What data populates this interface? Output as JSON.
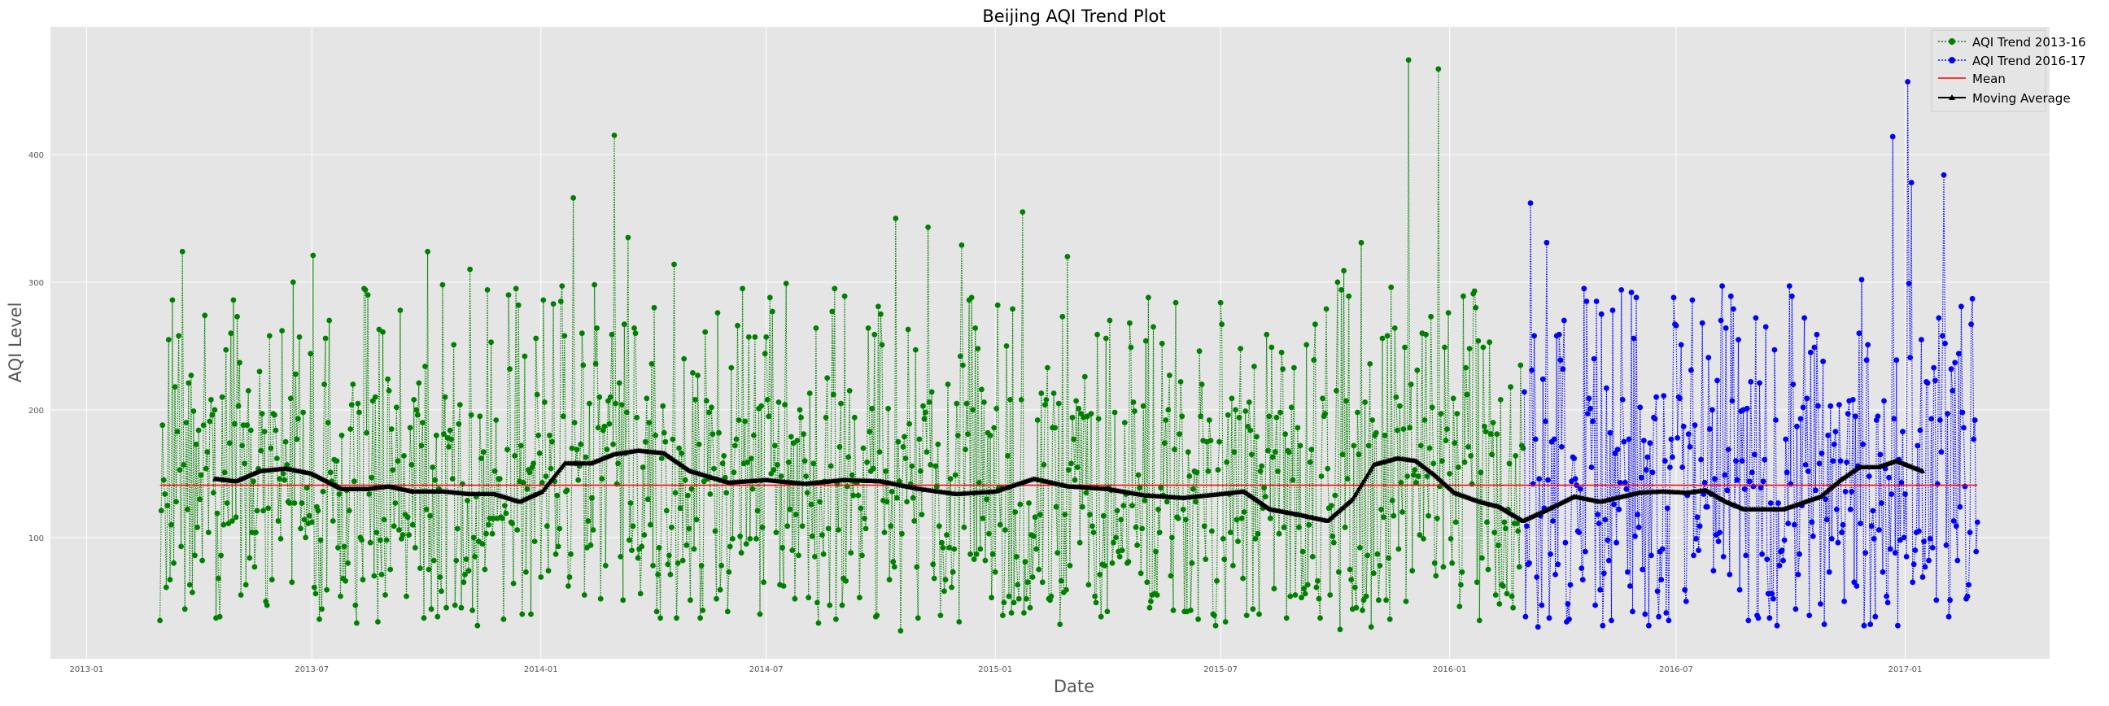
{
  "chart_data": {
    "type": "line",
    "title": "Beijing AQI Trend Plot",
    "xlabel": "Date",
    "ylabel": "AQI Level",
    "xlim": [
      "2012-12-03",
      "2017-04-27"
    ],
    "ylim": [
      5,
      500
    ],
    "x_ticks": [
      "2013-01",
      "2013-07",
      "2014-01",
      "2014-07",
      "2015-01",
      "2015-07",
      "2016-01",
      "2016-07",
      "2017-01"
    ],
    "y_ticks": [
      100,
      200,
      300,
      400
    ],
    "grid": true,
    "legend_position": "top-right",
    "mean_value": 141,
    "series": [
      {
        "name": "AQI Trend 2013-16",
        "color": "#008000",
        "marker": "circle",
        "linestyle": "dotted",
        "start": "2013-03-01",
        "end": "2016-02-29",
        "sampled_values": [
          {
            "date": "2013-03-01",
            "value": 35
          },
          {
            "date": "2013-03-04",
            "value": 145
          },
          {
            "date": "2013-03-08",
            "value": 255
          },
          {
            "date": "2013-03-11",
            "value": 286
          },
          {
            "date": "2013-03-16",
            "value": 258
          },
          {
            "date": "2013-03-19",
            "value": 324
          },
          {
            "date": "2013-05-02",
            "value": 273
          },
          {
            "date": "2013-07-02",
            "value": 321
          },
          {
            "date": "2013-10-02",
            "value": 324
          },
          {
            "date": "2013-11-05",
            "value": 310
          },
          {
            "date": "2013-12-12",
            "value": 295
          },
          {
            "date": "2014-01-27",
            "value": 366
          },
          {
            "date": "2014-03-01",
            "value": 415
          },
          {
            "date": "2014-03-12",
            "value": 335
          },
          {
            "date": "2014-04-18",
            "value": 314
          },
          {
            "date": "2014-10-13",
            "value": 350
          },
          {
            "date": "2014-11-08",
            "value": 343
          },
          {
            "date": "2014-12-05",
            "value": 329
          },
          {
            "date": "2015-01-23",
            "value": 355
          },
          {
            "date": "2015-02-28",
            "value": 320
          },
          {
            "date": "2015-07-17",
            "value": 248
          },
          {
            "date": "2015-10-08",
            "value": 309
          },
          {
            "date": "2015-10-22",
            "value": 331
          },
          {
            "date": "2015-11-29",
            "value": 474
          },
          {
            "date": "2015-12-23",
            "value": 467
          },
          {
            "date": "2015-10-05",
            "value": 28
          },
          {
            "date": "2014-10-17",
            "value": 27
          }
        ]
      },
      {
        "name": "AQI Trend 2016-17",
        "color": "#0000ff",
        "marker": "circle",
        "linestyle": "dotted",
        "start": "2016-03-01",
        "end": "2017-02-28",
        "sampled_values": [
          {
            "date": "2016-03-06",
            "value": 362
          },
          {
            "date": "2016-03-19",
            "value": 331
          },
          {
            "date": "2016-04-26",
            "value": 240
          },
          {
            "date": "2016-10-02",
            "value": 289
          },
          {
            "date": "2016-11-27",
            "value": 302
          },
          {
            "date": "2016-12-22",
            "value": 414
          },
          {
            "date": "2017-01-03",
            "value": 457
          },
          {
            "date": "2017-01-06",
            "value": 378
          },
          {
            "date": "2017-02-01",
            "value": 384
          },
          {
            "date": "2017-02-15",
            "value": 281
          },
          {
            "date": "2016-12-04",
            "value": 32
          }
        ]
      },
      {
        "name": "Mean",
        "color": "#ff0000",
        "linestyle": "solid",
        "value": 141,
        "x_range": [
          "2013-03-01",
          "2017-02-28"
        ]
      },
      {
        "name": "Moving Average",
        "color": "#000000",
        "marker": "triangle",
        "linestyle": "solid",
        "x": [
          "2013-04-14",
          "2013-05-01",
          "2013-05-20",
          "2013-06-10",
          "2013-07-01",
          "2013-07-25",
          "2013-08-15",
          "2013-09-01",
          "2013-09-20",
          "2013-10-15",
          "2013-11-05",
          "2013-11-25",
          "2013-12-15",
          "2014-01-02",
          "2014-01-20",
          "2014-02-10",
          "2014-02-28",
          "2014-03-20",
          "2014-04-10",
          "2014-05-01",
          "2014-06-01",
          "2014-07-01",
          "2014-08-01",
          "2014-09-01",
          "2014-10-01",
          "2014-11-01",
          "2014-12-01",
          "2015-01-01",
          "2015-02-01",
          "2015-03-01",
          "2015-04-01",
          "2015-05-01",
          "2015-06-01",
          "2015-07-01",
          "2015-07-20",
          "2015-08-10",
          "2015-09-01",
          "2015-09-25",
          "2015-10-15",
          "2015-11-01",
          "2015-11-20",
          "2015-12-05",
          "2015-12-20",
          "2016-01-05",
          "2016-01-25",
          "2016-02-10",
          "2016-02-29",
          "2016-03-20",
          "2016-04-10",
          "2016-05-01",
          "2016-06-01",
          "2016-06-20",
          "2016-07-10",
          "2016-07-25",
          "2016-08-10",
          "2016-08-25",
          "2016-09-10",
          "2016-09-25",
          "2016-10-10",
          "2016-10-25",
          "2016-11-10",
          "2016-11-25",
          "2016-12-10",
          "2016-12-25",
          "2017-01-15"
        ],
        "values": [
          146,
          144,
          152,
          154,
          150,
          138,
          138,
          140,
          136,
          136,
          134,
          134,
          128,
          136,
          158,
          158,
          165,
          168,
          166,
          152,
          143,
          145,
          142,
          145,
          144,
          138,
          134,
          136,
          146,
          140,
          138,
          133,
          131,
          134,
          136,
          122,
          118,
          113,
          130,
          157,
          162,
          160,
          149,
          135,
          128,
          124,
          113,
          122,
          132,
          128,
          135,
          136,
          135,
          137,
          128,
          122,
          122,
          122,
          127,
          132,
          145,
          155,
          155,
          160,
          152
        ]
      }
    ]
  }
}
